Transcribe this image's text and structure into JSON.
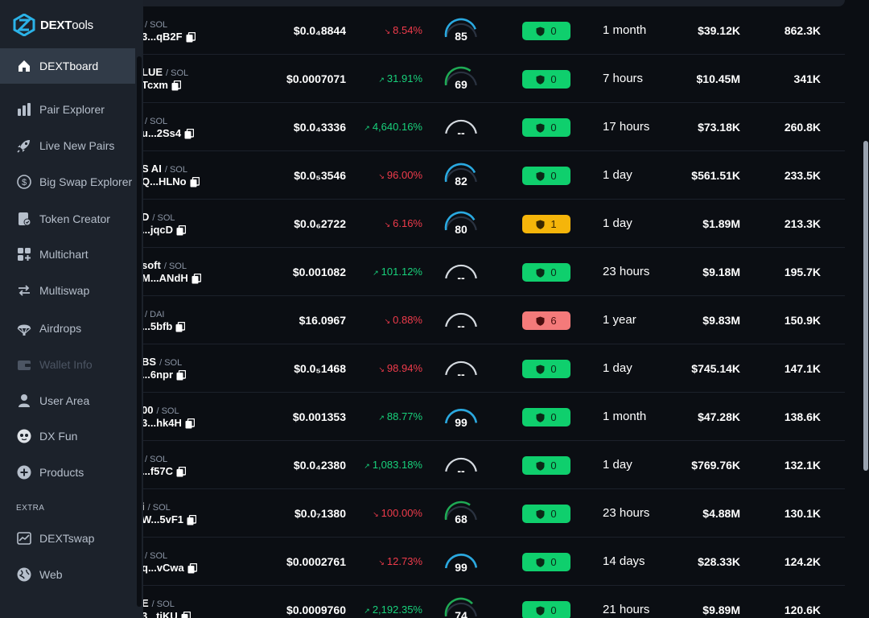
{
  "sidebar": {
    "logo": {
      "bold": "DEXT",
      "thin": "ools"
    },
    "items": [
      {
        "label": "DEXTboard",
        "icon": "home-icon",
        "active": true
      },
      {
        "label": "Pair Explorer",
        "icon": "chart-bar-icon"
      },
      {
        "label": "Live New Pairs",
        "icon": "rocket-icon"
      },
      {
        "label": "Big Swap Explorer",
        "icon": "dollar-coin-icon"
      },
      {
        "label": "Token Creator",
        "icon": "token-creator-icon"
      },
      {
        "label": "Multichart",
        "icon": "multichart-grid-icon"
      },
      {
        "label": "Multiswap",
        "icon": "multiswap-arrows-icon"
      },
      {
        "label": "Airdrops",
        "icon": "parachute-icon"
      },
      {
        "label": "Wallet Info",
        "icon": "wallet-icon",
        "disabled": true
      },
      {
        "label": "User Area",
        "icon": "user-icon"
      },
      {
        "label": "DX Fun",
        "icon": "dx-fun-mascot-icon"
      },
      {
        "label": "Products",
        "icon": "plus-circle-icon"
      }
    ],
    "extra_heading": "EXTRA",
    "extra_items": [
      {
        "label": "DEXTswap",
        "icon": "dextswap-chart-icon"
      },
      {
        "label": "Web",
        "icon": "globe-icon"
      }
    ]
  },
  "table": {
    "rows": [
      {
        "name": "",
        "quote": "SOL",
        "address": "3...qB2F",
        "price": "$0.0₄8844",
        "change": "8.54%",
        "dir": "down",
        "score": "85",
        "score_pct": 85,
        "audit": "0",
        "audit_state": "good",
        "age": "1 month",
        "liquidity": "$39.12K",
        "volume": "862.3K"
      },
      {
        "name": "LUE",
        "quote": "SOL",
        "address": "Tcxm",
        "price": "$0.0007071",
        "change": "31.91%",
        "dir": "up",
        "score": "69",
        "score_pct": 69,
        "audit": "0",
        "audit_state": "good",
        "age": "7 hours",
        "liquidity": "$10.45M",
        "volume": "341K"
      },
      {
        "name": "",
        "quote": "SOL",
        "address": "u...2Ss4",
        "price": "$0.0₄3336",
        "change": "4,640.16%",
        "dir": "up",
        "score": "--",
        "score_pct": null,
        "audit": "0",
        "audit_state": "good",
        "age": "17 hours",
        "liquidity": "$73.18K",
        "volume": "260.8K"
      },
      {
        "name": "S AI",
        "quote": "SOL",
        "address": "Q...HLNo",
        "price": "$0.0₅3546",
        "change": "96.00%",
        "dir": "down",
        "score": "82",
        "score_pct": 82,
        "audit": "0",
        "audit_state": "good",
        "age": "1 day",
        "liquidity": "$561.51K",
        "volume": "233.5K"
      },
      {
        "name": "D",
        "quote": "SOL",
        "address": "...jqcD",
        "price": "$0.0₆2722",
        "change": "6.16%",
        "dir": "down",
        "score": "80",
        "score_pct": 80,
        "audit": "1",
        "audit_state": "warn",
        "age": "1 day",
        "liquidity": "$1.89M",
        "volume": "213.3K"
      },
      {
        "name": "soft",
        "quote": "SOL",
        "address": "M...ANdH",
        "price": "$0.001082",
        "change": "101.12%",
        "dir": "up",
        "score": "--",
        "score_pct": null,
        "audit": "0",
        "audit_state": "good",
        "age": "23 hours",
        "liquidity": "$9.18M",
        "volume": "195.7K"
      },
      {
        "name": "",
        "quote": "DAI",
        "address": "...5bfb",
        "price": "$16.0967",
        "change": "0.88%",
        "dir": "down",
        "score": "--",
        "score_pct": null,
        "audit": "6",
        "audit_state": "bad",
        "age": "1 year",
        "liquidity": "$9.83M",
        "volume": "150.9K"
      },
      {
        "name": "BS",
        "quote": "SOL",
        "address": "...6npr",
        "price": "$0.0₅1468",
        "change": "98.94%",
        "dir": "down",
        "score": "--",
        "score_pct": null,
        "audit": "0",
        "audit_state": "good",
        "age": "1 day",
        "liquidity": "$745.14K",
        "volume": "147.1K"
      },
      {
        "name": "00",
        "quote": "SOL",
        "address": "3...hk4H",
        "price": "$0.001353",
        "change": "88.77%",
        "dir": "up",
        "score": "99",
        "score_pct": 99,
        "audit": "0",
        "audit_state": "good",
        "age": "1 month",
        "liquidity": "$47.28K",
        "volume": "138.6K"
      },
      {
        "name": "",
        "quote": "SOL",
        "address": "...f57C",
        "price": "$0.0₄2380",
        "change": "1,083.18%",
        "dir": "up",
        "score": "--",
        "score_pct": null,
        "audit": "0",
        "audit_state": "good",
        "age": "1 day",
        "liquidity": "$769.76K",
        "volume": "132.1K"
      },
      {
        "name": "i",
        "quote": "SOL",
        "address": "W...5vF1",
        "price": "$0.0₇1380",
        "change": "100.00%",
        "dir": "down",
        "score": "68",
        "score_pct": 68,
        "audit": "0",
        "audit_state": "good",
        "age": "23 hours",
        "liquidity": "$4.88M",
        "volume": "130.1K"
      },
      {
        "name": "",
        "quote": "SOL",
        "address": "q...vCwa",
        "price": "$0.0002761",
        "change": "12.73%",
        "dir": "down",
        "score": "99",
        "score_pct": 99,
        "audit": "0",
        "audit_state": "good",
        "age": "14 days",
        "liquidity": "$28.33K",
        "volume": "124.2K"
      },
      {
        "name": "E",
        "quote": "SOL",
        "address": "3...tiKU",
        "price": "$0.0009760",
        "change": "2,192.35%",
        "dir": "up",
        "score": "74",
        "score_pct": 74,
        "audit": "0",
        "audit_state": "good",
        "age": "21 hours",
        "liquidity": "$9.89M",
        "volume": "120.6K"
      }
    ]
  },
  "colors": {
    "up": "#18d17b",
    "down": "#ef3b4b",
    "gauge_high": "#2aa9e0",
    "gauge_mid": "#1faa55",
    "gauge_empty": "#d5dae0",
    "accent_logo": "#2bb3e8"
  }
}
